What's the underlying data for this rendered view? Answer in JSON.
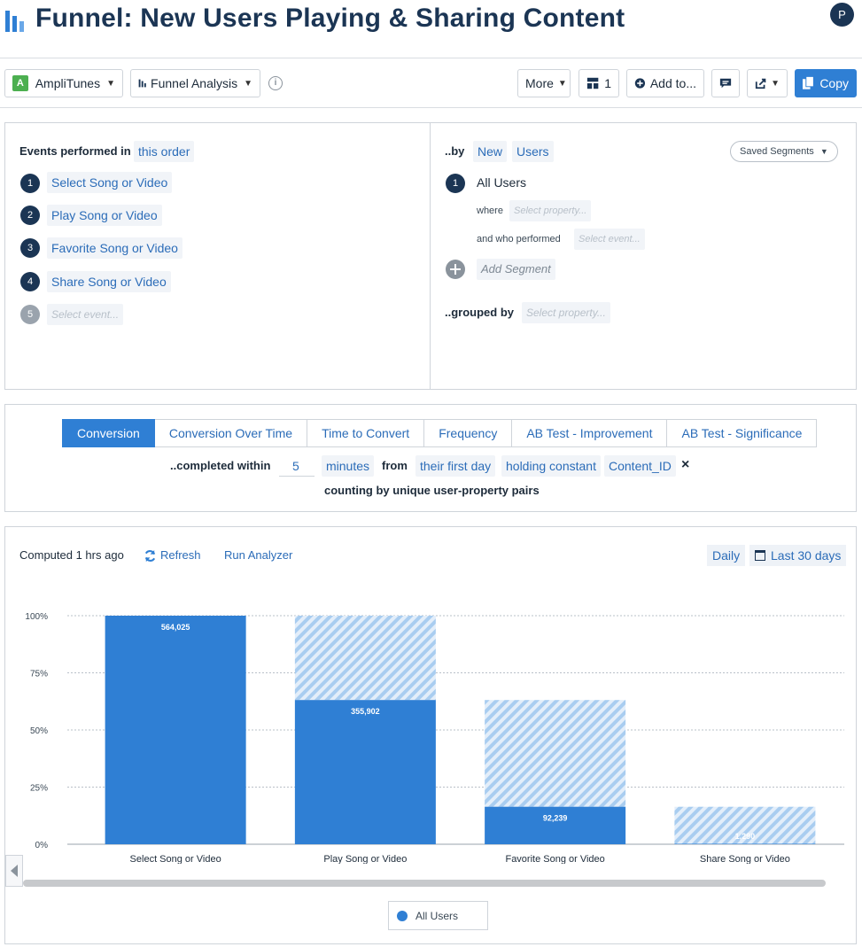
{
  "header": {
    "title": "Funnel: New Users Playing & Sharing Content",
    "avatar_initial": "P"
  },
  "toolbar": {
    "app_badge": "A",
    "app_name": "AmpliTunes",
    "chart_type": "Funnel Analysis",
    "info": "i",
    "more_label": "More",
    "dashboard_count": "1",
    "add_to_label": "Add to...",
    "copy_label": "Copy"
  },
  "events": {
    "heading": "Events performed in",
    "order": "this order",
    "items": [
      {
        "num": "1",
        "name": "Select Song or Video"
      },
      {
        "num": "2",
        "name": "Play Song or Video"
      },
      {
        "num": "3",
        "name": "Favorite Song or Video"
      },
      {
        "num": "4",
        "name": "Share Song or Video"
      }
    ],
    "next_num": "5",
    "placeholder": "Select event..."
  },
  "segments": {
    "by_label": "..by",
    "new": "New",
    "users": "Users",
    "saved_segments": "Saved Segments",
    "segment_num": "1",
    "segment_name": "All Users",
    "where_label": "where",
    "where_placeholder": "Select property...",
    "performed_label": "and who performed",
    "performed_placeholder": "Select event...",
    "add_segment": "Add Segment",
    "grouped_label": "..grouped by",
    "grouped_placeholder": "Select property..."
  },
  "options": {
    "tabs": [
      "Conversion",
      "Conversion Over Time",
      "Time to Convert",
      "Frequency",
      "AB Test - Improvement",
      "AB Test - Significance"
    ],
    "completed_label": "..completed within",
    "completed_value": "5",
    "unit": "minutes",
    "from_label": "from",
    "from_value": "their first day",
    "holding_label": "holding constant",
    "holding_value": "Content_ID",
    "remove": "×",
    "counting_text": "counting by unique user-property pairs"
  },
  "chart_header": {
    "computed": "Computed 1 hrs ago",
    "refresh": "Refresh",
    "run_analyzer": "Run Analyzer",
    "interval": "Daily",
    "range": "Last 30 days"
  },
  "legend": {
    "label": "All Users"
  },
  "colors": {
    "accent": "#2f7fd4",
    "navy": "#1b3554",
    "hatch": "#a9cdf0"
  },
  "chart_data": {
    "type": "bar",
    "categories": [
      "Select Song or Video",
      "Play Song or Video",
      "Favorite Song or Video",
      "Share Song or Video"
    ],
    "series": [
      {
        "name": "All Users",
        "values": [
          564025,
          355902,
          92239,
          1290
        ]
      }
    ],
    "value_labels": [
      "564,025",
      "355,902",
      "92,239",
      "1,290"
    ],
    "converted_pct": [
      100,
      63.1,
      16.4,
      0.2
    ],
    "dropoff_top_pct": [
      100,
      100,
      63.1,
      16.4
    ],
    "ylim": [
      0,
      100
    ],
    "yticks": [
      "0%",
      "25%",
      "50%",
      "75%",
      "100%"
    ],
    "grid": true
  }
}
